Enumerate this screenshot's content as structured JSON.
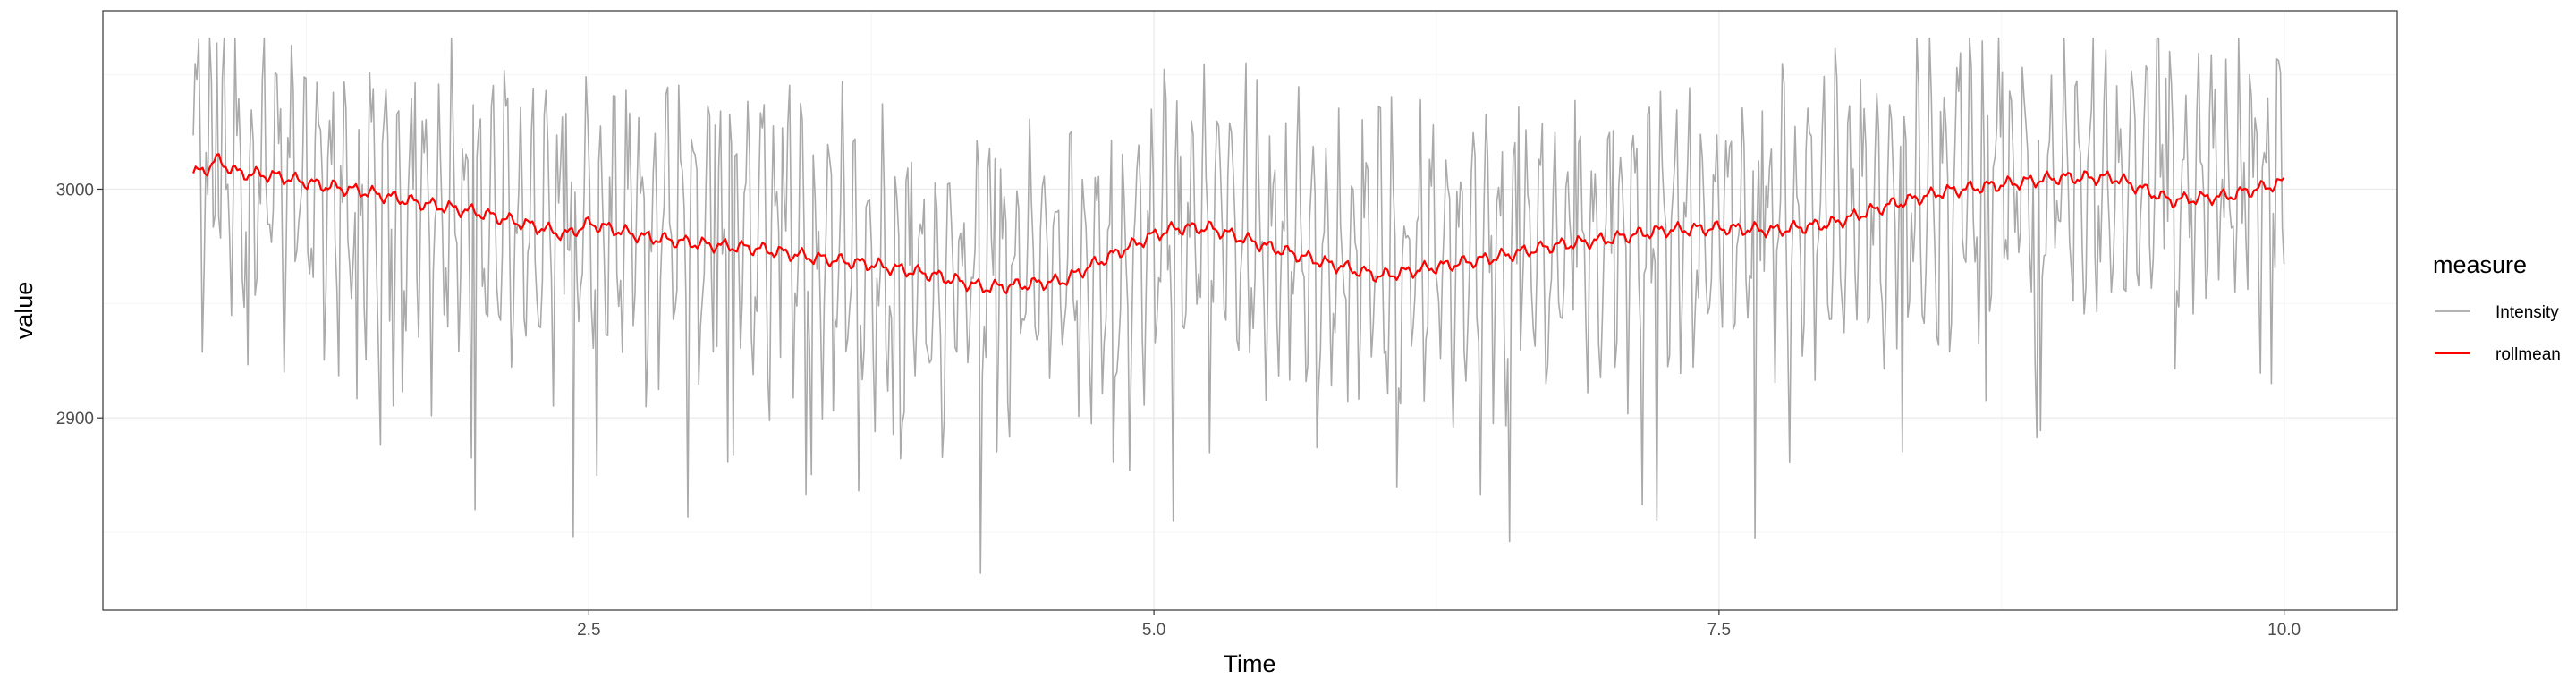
{
  "chart_data": {
    "type": "line",
    "xlabel": "Time",
    "ylabel": "value",
    "xlim": [
      0.35,
      10.5
    ],
    "ylim": [
      2816,
      3078
    ],
    "x_ticks": [
      2.5,
      5.0,
      7.5,
      10.0
    ],
    "x_tick_labels": [
      "2.5",
      "5.0",
      "7.5",
      "10.0"
    ],
    "y_ticks": [
      2900,
      3000
    ],
    "y_tick_labels": [
      "2900",
      "3000"
    ],
    "grid": true,
    "legend": {
      "title": "measure",
      "position": "right",
      "entries": [
        "Intensity",
        "rollmean"
      ]
    },
    "colors": {
      "Intensity": "#aaaaaa",
      "rollmean": "#ff0000",
      "grid_major": "#ebebeb",
      "grid_minor": "#f5f5f5",
      "panel_border": "#333333"
    },
    "series": [
      {
        "name": "Intensity",
        "x_start": 0.75,
        "x_end": 10.0,
        "mean_profile": {
          "x": [
            0.75,
            1.25,
            1.75,
            2.25,
            2.75,
            3.25,
            3.75,
            4.25,
            4.75,
            5.25,
            5.75,
            6.25,
            6.75,
            7.25,
            7.75,
            8.25,
            8.75,
            9.25,
            9.75,
            10.0
          ],
          "y": [
            3008,
            3002,
            2994,
            2985,
            2980,
            2975,
            2968,
            2960,
            2962,
            2983,
            2972,
            2965,
            2975,
            2983,
            2985,
            2990,
            3000,
            3005,
            3000,
            3003
          ]
        },
        "min": 2829,
        "max": 3066,
        "note": "high-frequency oscillation of roughly ±60 around the rolling mean"
      },
      {
        "name": "rollmean",
        "x": [
          0.75,
          0.8,
          0.85,
          0.95,
          1.1,
          1.3,
          1.5,
          1.75,
          2.0,
          2.25,
          2.4,
          2.5,
          2.75,
          3.0,
          3.25,
          3.5,
          3.75,
          4.0,
          4.25,
          4.4,
          4.6,
          4.75,
          5.0,
          5.1,
          5.25,
          5.5,
          5.75,
          6.0,
          6.25,
          6.5,
          6.75,
          7.0,
          7.25,
          7.5,
          7.75,
          8.0,
          8.25,
          8.5,
          8.75,
          9.0,
          9.25,
          9.5,
          9.75,
          10.0
        ],
        "y": [
          3007,
          3008,
          3013,
          3007,
          3006,
          3002,
          2999,
          2994,
          2990,
          2984,
          2980,
          2985,
          2979,
          2976,
          2974,
          2970,
          2967,
          2963,
          2957,
          2958,
          2960,
          2968,
          2980,
          2983,
          2983,
          2975,
          2968,
          2962,
          2966,
          2970,
          2975,
          2978,
          2982,
          2983,
          2982,
          2985,
          2993,
          2999,
          3002,
          3005,
          3005,
          2995,
          2997,
          3003
        ]
      }
    ]
  }
}
